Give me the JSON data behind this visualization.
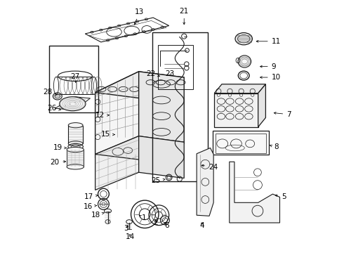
{
  "bg_color": "#ffffff",
  "line_color": "#1a1a1a",
  "fig_width": 4.9,
  "fig_height": 3.6,
  "dpi": 100,
  "label_fs": 7.5,
  "parts_labels": {
    "1": [
      0.388,
      0.138,
      0.368,
      0.148,
      "center"
    ],
    "2": [
      0.435,
      0.118,
      0.435,
      0.138,
      "center"
    ],
    "3": [
      0.318,
      0.095,
      0.33,
      0.115,
      "center"
    ],
    "4": [
      0.62,
      0.108,
      0.615,
      0.128,
      "center"
    ],
    "5": [
      0.935,
      0.22,
      0.9,
      0.23,
      "left"
    ],
    "6": [
      0.48,
      0.108,
      0.465,
      0.128,
      "center"
    ],
    "7": [
      0.955,
      0.548,
      0.895,
      0.555,
      "left"
    ],
    "8": [
      0.905,
      0.418,
      0.88,
      0.428,
      "left"
    ],
    "9": [
      0.895,
      0.738,
      0.84,
      0.738,
      "left"
    ],
    "10": [
      0.895,
      0.695,
      0.84,
      0.695,
      "left"
    ],
    "11": [
      0.895,
      0.838,
      0.825,
      0.838,
      "left"
    ],
    "12": [
      0.232,
      0.545,
      0.26,
      0.545,
      "right"
    ],
    "13": [
      0.37,
      0.955,
      0.348,
      0.895,
      "center"
    ],
    "14": [
      0.335,
      0.062,
      0.33,
      0.082,
      "center"
    ],
    "15": [
      0.255,
      0.468,
      0.282,
      0.468,
      "right"
    ],
    "16": [
      0.185,
      0.182,
      0.21,
      0.188,
      "right"
    ],
    "17": [
      0.188,
      0.222,
      0.215,
      0.228,
      "right"
    ],
    "18": [
      0.215,
      0.148,
      0.232,
      0.158,
      "right"
    ],
    "19": [
      0.065,
      0.415,
      0.09,
      0.415,
      "right"
    ],
    "20": [
      0.052,
      0.358,
      0.088,
      0.362,
      "right"
    ],
    "21": [
      0.548,
      0.958,
      0.548,
      0.895,
      "center"
    ],
    "22": [
      0.435,
      0.708,
      0.46,
      0.698,
      "right"
    ],
    "23": [
      0.492,
      0.708,
      0.505,
      0.695,
      "center"
    ],
    "24": [
      0.645,
      0.338,
      0.608,
      0.348,
      "left"
    ],
    "25": [
      0.455,
      0.285,
      0.482,
      0.292,
      "right"
    ],
    "26": [
      0.04,
      0.572,
      0.068,
      0.565,
      "right"
    ],
    "27": [
      0.115,
      0.698,
      0.118,
      0.672,
      "center"
    ],
    "28": [
      0.025,
      0.638,
      0.045,
      0.625,
      "right"
    ]
  }
}
